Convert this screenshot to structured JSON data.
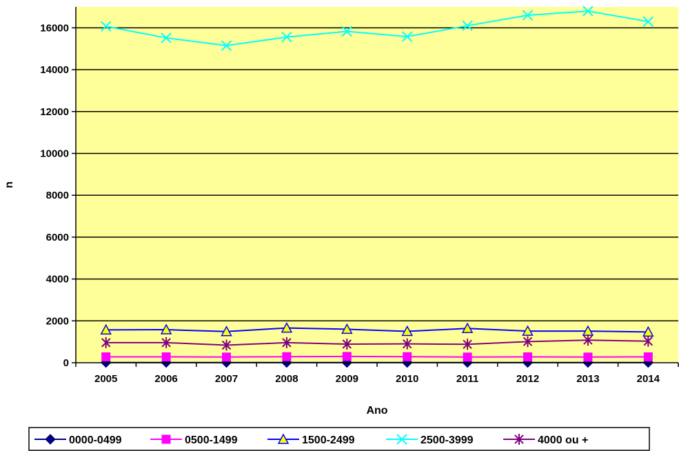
{
  "chart_data": {
    "type": "line",
    "title": "",
    "xlabel": "Ano",
    "ylabel": "n",
    "x": [
      "2005",
      "2006",
      "2007",
      "2008",
      "2009",
      "2010",
      "2011",
      "2012",
      "2013",
      "2014"
    ],
    "ylim": [
      0,
      17000
    ],
    "yticks": [
      0,
      2000,
      4000,
      6000,
      8000,
      10000,
      12000,
      14000,
      16000
    ],
    "ytick_labels": [
      "0",
      "2000",
      "4000",
      "6000",
      "8000",
      "10000",
      "12000",
      "14000",
      "16000"
    ],
    "grid": "horizontal",
    "legend_position": "bottom",
    "plot_background": "#FFFF99",
    "series": [
      {
        "name": "0000-0499",
        "color": "#000080",
        "marker": "diamond",
        "values": [
          10,
          10,
          10,
          10,
          10,
          10,
          10,
          10,
          10,
          10
        ]
      },
      {
        "name": "0500-1499",
        "color": "#FF00FF",
        "marker": "square",
        "values": [
          280,
          280,
          270,
          290,
          300,
          290,
          270,
          280,
          270,
          280
        ]
      },
      {
        "name": "1500-2499",
        "color": "#0000FF",
        "marker": "triangle",
        "values": [
          1570,
          1580,
          1490,
          1660,
          1600,
          1500,
          1640,
          1510,
          1510,
          1470
        ]
      },
      {
        "name": "2500-3999",
        "color": "#00FFFF",
        "marker": "x",
        "values": [
          16070,
          15520,
          15150,
          15560,
          15830,
          15580,
          16100,
          16600,
          16800,
          16300
        ]
      },
      {
        "name": "4000 ou +",
        "color": "#800080",
        "marker": "asterisk",
        "values": [
          960,
          960,
          840,
          960,
          890,
          900,
          880,
          1010,
          1080,
          1030
        ]
      }
    ]
  }
}
